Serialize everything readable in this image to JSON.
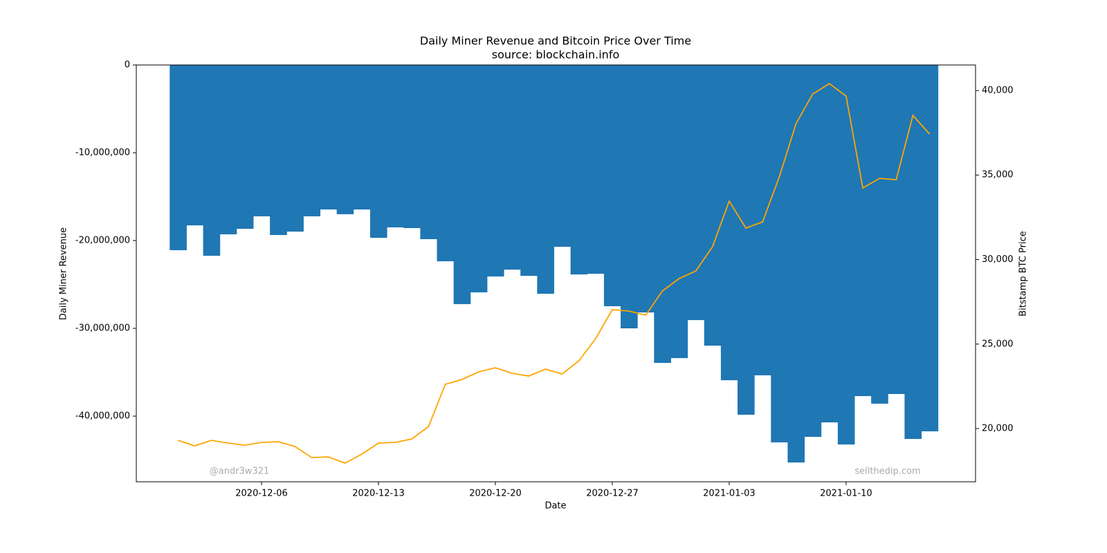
{
  "chart_data": {
    "type": "bar-line",
    "title": "Daily Miner Revenue and Bitcoin Price Over Time",
    "subtitle": "source: blockchain.info",
    "x_label": "Date",
    "y_label": "Daily Miner Revenue",
    "y2_label": "Bitstamp BTC Price",
    "annotations": [
      "@andr3w321",
      "sellthedip.com"
    ],
    "x": [
      "2020-12-01",
      "2020-12-02",
      "2020-12-03",
      "2020-12-04",
      "2020-12-05",
      "2020-12-06",
      "2020-12-07",
      "2020-12-08",
      "2020-12-09",
      "2020-12-10",
      "2020-12-11",
      "2020-12-12",
      "2020-12-13",
      "2020-12-14",
      "2020-12-15",
      "2020-12-16",
      "2020-12-17",
      "2020-12-18",
      "2020-12-19",
      "2020-12-20",
      "2020-12-21",
      "2020-12-22",
      "2020-12-23",
      "2020-12-24",
      "2020-12-25",
      "2020-12-26",
      "2020-12-27",
      "2020-12-28",
      "2020-12-29",
      "2020-12-30",
      "2020-12-31",
      "2021-01-01",
      "2021-01-02",
      "2021-01-03",
      "2021-01-04",
      "2021-01-05",
      "2021-01-06",
      "2021-01-07",
      "2021-01-08",
      "2021-01-09",
      "2021-01-10",
      "2021-01-11",
      "2021-01-12",
      "2021-01-13",
      "2021-01-14",
      "2021-01-15"
    ],
    "series": [
      {
        "name": "Daily Miner Revenue",
        "type": "bar",
        "color": "#1f77b4",
        "values": [
          -21100000,
          -18270000,
          -21730000,
          -19290000,
          -18660000,
          -17240000,
          -19370000,
          -18980000,
          -17240000,
          -16460000,
          -17000000,
          -16460000,
          -19690000,
          -18500000,
          -18580000,
          -19840000,
          -22360000,
          -27240000,
          -25900000,
          -24090000,
          -23310000,
          -24020000,
          -26060000,
          -20710000,
          -23860000,
          -23780000,
          -27480000,
          -30000000,
          -28190000,
          -33940000,
          -33390000,
          -29060000,
          -31970000,
          -35910000,
          -39840000,
          -35350000,
          -42990000,
          -45280000,
          -42360000,
          -40710000,
          -43230000,
          -37720000,
          -38580000,
          -37480000,
          -42600000,
          -41730000
        ]
      },
      {
        "name": "Bitstamp BTC Price",
        "type": "line",
        "axis": "y2",
        "color": "#ffa500",
        "values": [
          19305,
          18978,
          19305,
          19141,
          19018,
          19182,
          19223,
          18937,
          18282,
          18323,
          17955,
          18487,
          19141,
          19182,
          19387,
          20123,
          22618,
          22904,
          23354,
          23599,
          23272,
          23108,
          23517,
          23231,
          24008,
          25317,
          27035,
          26953,
          26708,
          28139,
          28875,
          29325,
          30757,
          33456,
          31861,
          32229,
          34888,
          38037,
          39796,
          40409,
          39673,
          34233,
          34806,
          34724,
          38528,
          37423
        ]
      }
    ],
    "xlim": [
      "2020-11-28T12:00:00Z",
      "2021-01-17T18:00:00Z"
    ],
    "xticks": [
      "2020-12-06",
      "2020-12-13",
      "2020-12-20",
      "2020-12-27",
      "2021-01-03",
      "2021-01-10"
    ],
    "ylim": [
      -47480000,
      0
    ],
    "yticks": [
      0,
      {
        "value": -10000000,
        "label": "-10,000,000"
      },
      {
        "value": -20000000,
        "label": "-20,000,000"
      },
      {
        "value": -30000000,
        "label": "-30,000,000"
      },
      {
        "value": -40000000,
        "label": "-40,000,000"
      }
    ],
    "y2lim": [
      16851,
      41513
    ],
    "y2ticks": [
      {
        "value": 20000,
        "label": "20,000"
      },
      {
        "value": 25000,
        "label": "25,000"
      },
      {
        "value": 30000,
        "label": "30,000"
      },
      {
        "value": 35000,
        "label": "35,000"
      },
      {
        "value": 40000,
        "label": "40,000"
      }
    ]
  }
}
